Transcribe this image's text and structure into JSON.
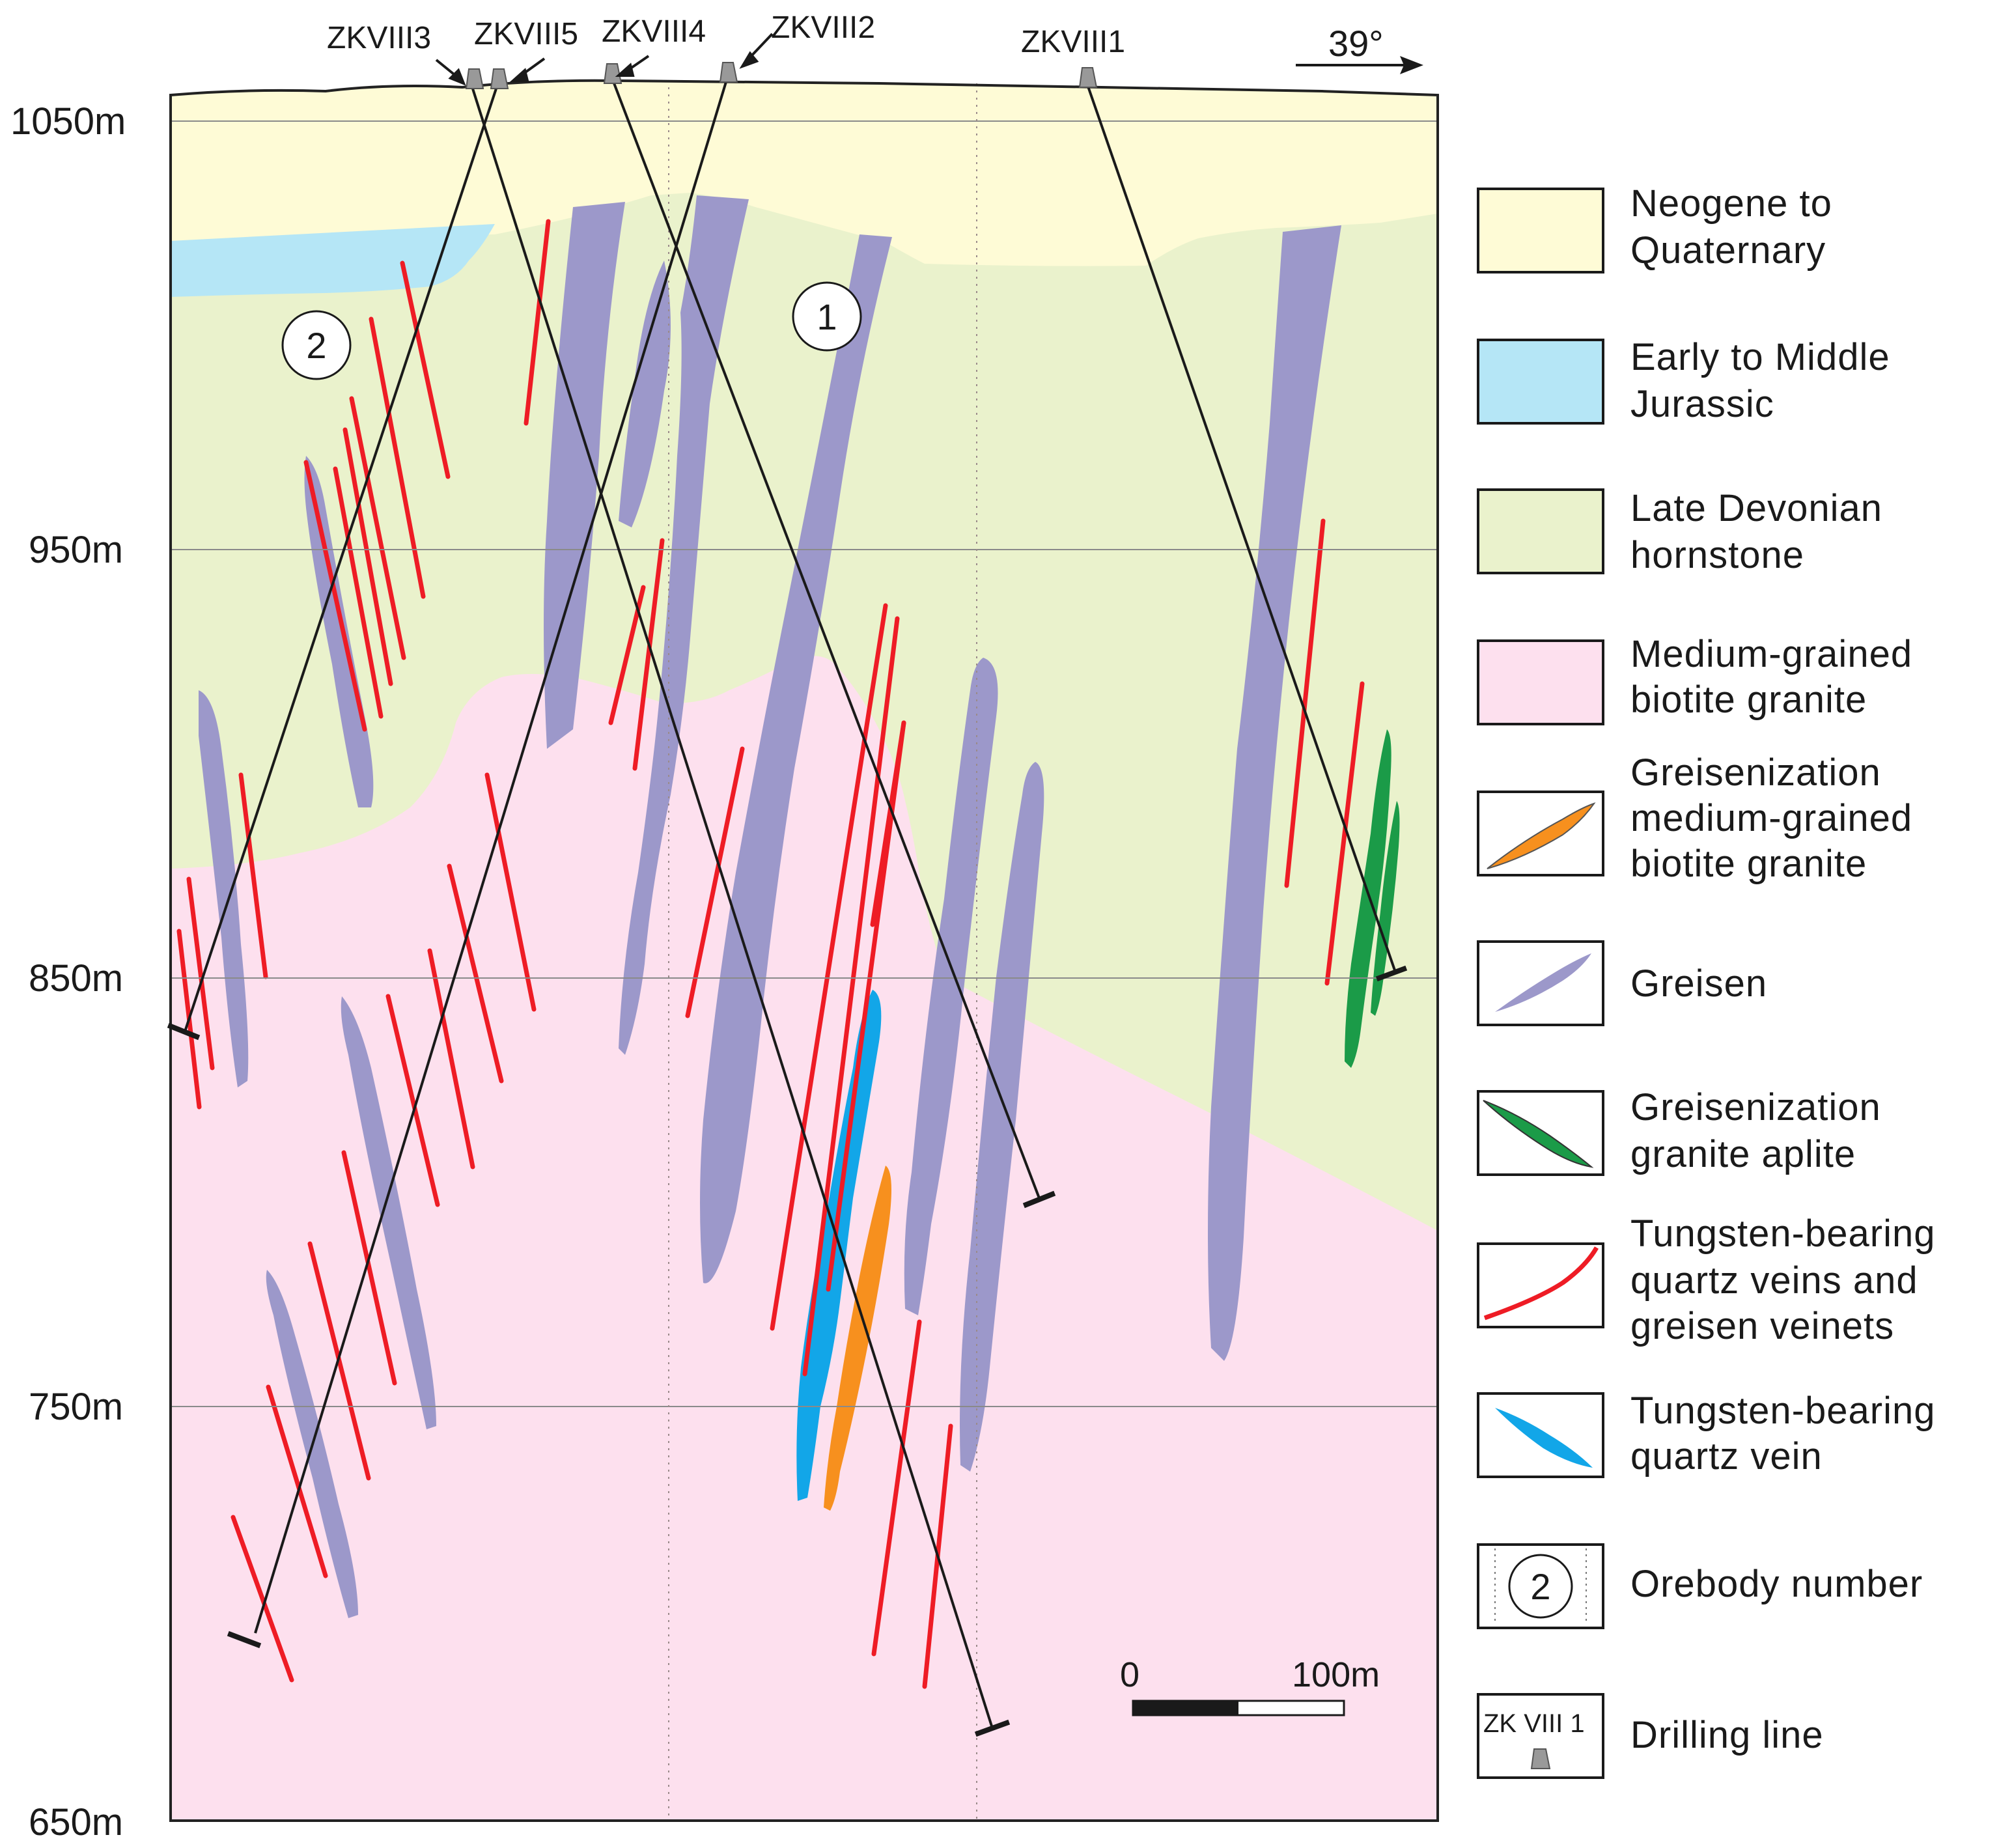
{
  "elevations": [
    "1050m",
    "950m",
    "850m",
    "750m",
    "650m"
  ],
  "drillholes": [
    "ZKVIII3",
    "ZKVIII5",
    "ZKVIII4",
    "ZKVIII2",
    "ZKVIII1"
  ],
  "orientation": "39°",
  "orebodies": [
    "1",
    "2"
  ],
  "scale_bar": {
    "start": "0",
    "end": "100m"
  },
  "legend": [
    {
      "id": "neogene",
      "lines": [
        "Neogene to",
        "Quaternary"
      ],
      "color": "#fefbd6"
    },
    {
      "id": "jurassic",
      "lines": [
        "Early to Middle",
        "Jurassic"
      ],
      "color": "#b5e6f6"
    },
    {
      "id": "devonian",
      "lines": [
        "Late Devonian",
        "hornstone"
      ],
      "color": "#eaf2cc"
    },
    {
      "id": "granite",
      "lines": [
        "Medium-grained",
        "biotite granite"
      ],
      "color": "#fde0ee"
    },
    {
      "id": "greisenization-granite",
      "lines": [
        "Greisenization",
        "medium-grained",
        "biotite granite"
      ],
      "color": "#f7901e"
    },
    {
      "id": "greisen",
      "lines": [
        "Greisen"
      ],
      "color": "#9c98ca"
    },
    {
      "id": "greisenization-aplite",
      "lines": [
        "Greisenization",
        "granite aplite"
      ],
      "color": "#1b9b48"
    },
    {
      "id": "tungsten-veins",
      "lines": [
        "Tungsten-bearing",
        "quartz veins  and",
        "greisen veinets"
      ],
      "color": "#ee1c25"
    },
    {
      "id": "tungsten-vein",
      "lines": [
        "Tungsten-bearing",
        "quartz vein"
      ],
      "color": "#12a6e8"
    },
    {
      "id": "orebody-number",
      "lines": [
        "Orebody number"
      ],
      "symbol": "2"
    },
    {
      "id": "drilling-line",
      "lines": [
        "Drilling line"
      ],
      "symbol": "ZK VIII 1"
    }
  ]
}
